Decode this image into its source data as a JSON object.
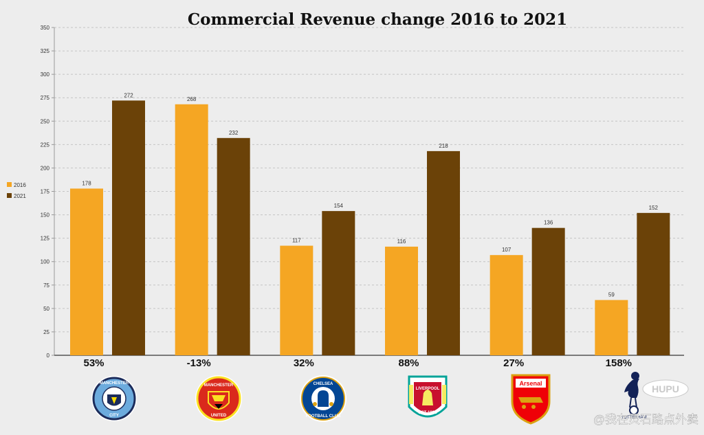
{
  "chart_data": {
    "type": "bar",
    "title": "Commercial Revenue change 2016 to 2021",
    "categories": [
      "Manchester City",
      "Manchester United",
      "Chelsea",
      "Liverpool",
      "Arsenal",
      "Tottenham"
    ],
    "series": [
      {
        "name": "2016",
        "values": [
          178,
          268,
          117,
          116,
          107,
          59
        ],
        "color": "#f5a623"
      },
      {
        "name": "2021",
        "values": [
          272,
          232,
          154,
          218,
          136,
          152
        ],
        "color": "#6b4208"
      }
    ],
    "pct_changes": [
      "53%",
      "-13%",
      "32%",
      "88%",
      "27%",
      "158%"
    ],
    "ylim": [
      0,
      350
    ],
    "yticks": [
      0,
      25,
      50,
      75,
      100,
      125,
      150,
      175,
      200,
      225,
      250,
      275,
      300,
      325,
      350
    ],
    "grid": true,
    "legend_position": "left",
    "xlabel": "",
    "ylabel": ""
  },
  "logos": [
    {
      "icon": "manchester-city-crest-icon",
      "top_text": "MANCHESTER",
      "bottom_text": "CITY"
    },
    {
      "icon": "manchester-united-crest-icon",
      "top_text": "MANCHESTER",
      "bottom_text": "UNITED"
    },
    {
      "icon": "chelsea-crest-icon",
      "top_text": "CHELSEA",
      "bottom_text": "FOOTBALL CLUB"
    },
    {
      "icon": "liverpool-crest-icon",
      "top_text": "LIVERPOOL",
      "bottom_text": "EST 1892"
    },
    {
      "icon": "arsenal-crest-icon",
      "top_text": "Arsenal",
      "bottom_text": ""
    },
    {
      "icon": "tottenham-crest-icon",
      "top_text": "",
      "bottom_text": "TOTTENHAM"
    }
  ],
  "watermark": {
    "badge": "HUPU",
    "text": "@我在灵石路点外卖"
  }
}
